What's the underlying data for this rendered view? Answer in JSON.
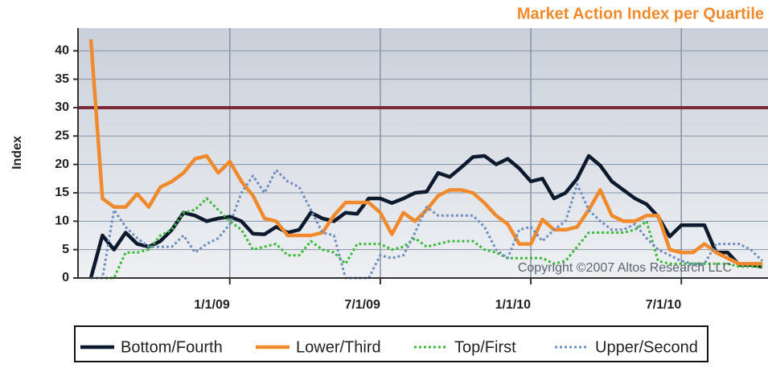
{
  "chart_data": {
    "type": "line",
    "title": "Market Action Index per Quartile",
    "y_label": "Index",
    "annotation": "Copyright ©2007 Altos Research LLC",
    "threshold": 30,
    "categories": [
      null,
      null,
      null,
      null,
      null,
      null,
      null,
      null,
      null,
      null,
      null,
      null,
      "1/1/09",
      null,
      null,
      null,
      null,
      null,
      null,
      null,
      null,
      null,
      null,
      null,
      null,
      "7/1/09",
      null,
      null,
      null,
      null,
      null,
      null,
      null,
      null,
      null,
      null,
      null,
      null,
      "1/1/10",
      null,
      null,
      null,
      null,
      null,
      null,
      null,
      null,
      null,
      null,
      null,
      null,
      "7/1/10",
      null,
      null,
      null,
      null,
      null,
      null,
      null
    ],
    "series": [
      {
        "name": "Bottom/Fourth",
        "color": "#0d1a2e",
        "values": [
          0,
          7.5,
          5,
          8,
          6,
          5.5,
          6.5,
          8.5,
          11.5,
          11,
          10,
          10.5,
          10.8,
          10,
          7.8,
          7.7,
          9,
          8,
          8.5,
          11.5,
          10.5,
          10,
          11.5,
          11.3,
          14,
          14,
          13.2,
          14,
          15,
          15.2,
          18.5,
          17.8,
          19.5,
          21.3,
          21.5,
          20,
          21,
          19.3,
          17,
          17.5,
          14,
          15,
          17.5,
          21.5,
          19.8,
          17,
          15.5,
          14,
          13,
          10.8,
          7.3,
          9.3,
          9.3,
          9.3,
          4.5,
          4.5,
          2.3,
          2.3,
          2
        ]
      },
      {
        "name": "Lower/Third",
        "color": "#f08a2c",
        "values": [
          42,
          14,
          12.5,
          12.5,
          14.8,
          12.5,
          16,
          17,
          18.5,
          21,
          21.5,
          18.5,
          20.5,
          17,
          14.5,
          10.5,
          10,
          7.5,
          7.5,
          7.5,
          8,
          11,
          13.3,
          13.3,
          13.3,
          11.5,
          7.7,
          11.5,
          10,
          12,
          14.5,
          15.5,
          15.5,
          15,
          13.2,
          11,
          9.5,
          6,
          6,
          10.3,
          8.5,
          8.5,
          9,
          12,
          15.5,
          11,
          10,
          10,
          11,
          11,
          5,
          4.5,
          4.5,
          6,
          4.5,
          3.5,
          2.5,
          2.5,
          2.5
        ]
      },
      {
        "name": "Top/First",
        "color": "#3cba3c",
        "values": [
          0,
          0,
          0,
          4.5,
          4.5,
          5,
          7.5,
          8.5,
          11.5,
          12,
          14,
          12,
          10,
          8.5,
          5,
          5.5,
          6,
          4,
          4,
          6.5,
          5,
          4.5,
          2.5,
          6,
          6,
          6,
          5,
          5.5,
          7,
          5.5,
          6,
          6.5,
          6.5,
          6.5,
          5,
          4.5,
          3.5,
          3.5,
          3.5,
          3.5,
          2.5,
          3,
          5.5,
          8,
          8,
          8,
          8,
          8.5,
          10,
          3,
          2.5,
          2.5,
          2.5,
          2.5,
          2.5,
          2.5,
          2,
          2,
          2
        ]
      },
      {
        "name": "Upper/Second",
        "color": "#6f8fbf",
        "values": [
          0,
          0,
          12,
          9,
          7,
          5.5,
          5.5,
          5.5,
          7.5,
          4.5,
          6,
          7,
          9.5,
          15,
          18,
          15,
          19,
          17,
          16,
          12,
          8,
          7.5,
          0,
          0,
          0,
          4,
          3.5,
          4,
          8,
          12.5,
          11,
          11,
          11,
          11,
          9,
          5,
          3.5,
          8.5,
          9,
          6.5,
          8.5,
          10,
          16.5,
          12,
          10,
          8.5,
          8.5,
          9.5,
          7,
          5,
          4,
          3,
          2.5,
          2.5,
          6,
          6,
          6,
          5,
          3
        ]
      }
    ],
    "ylim": [
      0,
      44
    ],
    "yticks": [
      0,
      5,
      10,
      15,
      20,
      25,
      30,
      35,
      40
    ],
    "grid": true
  }
}
